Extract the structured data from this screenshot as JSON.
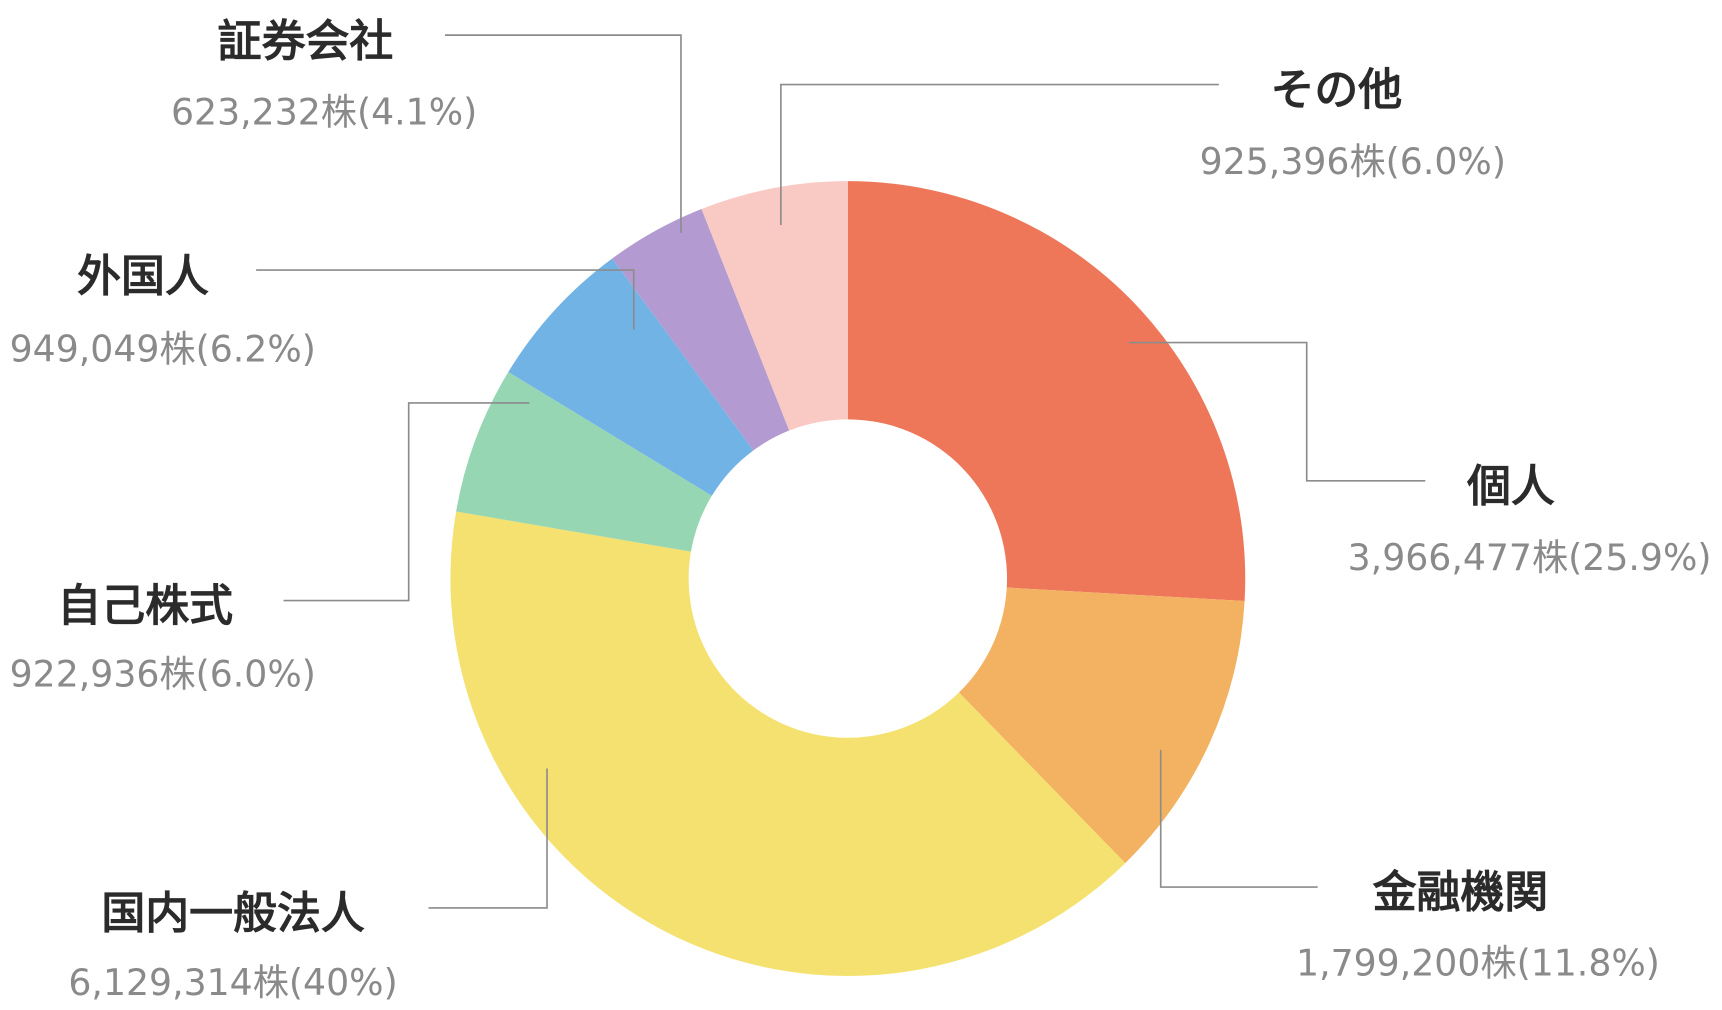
{
  "chart_data": {
    "type": "pie",
    "variant": "donut",
    "unit": "株",
    "start": "top",
    "direction": "clockwise",
    "slices": [
      {
        "label": "個人",
        "value": 3966477,
        "value_text": "3,966,477株(25.9%)",
        "percent": 25.9,
        "color": "#EE775A"
      },
      {
        "label": "金融機関",
        "value": 1799200,
        "value_text": "1,799,200株(11.8%)",
        "percent": 11.8,
        "color": "#F3B261"
      },
      {
        "label": "国内一般法人",
        "value": 6129314,
        "value_text": "6,129,314株(40%)",
        "percent": 40.0,
        "color": "#F5E170"
      },
      {
        "label": "自己株式",
        "value": 922936,
        "value_text": "922,936株(6.0%)",
        "percent": 6.0,
        "color": "#97D6B2"
      },
      {
        "label": "外国人",
        "value": 949049,
        "value_text": "949,049株(6.2%)",
        "percent": 6.2,
        "color": "#72B3E6"
      },
      {
        "label": "証券会社",
        "value": 623232,
        "value_text": "623,232株(4.1%)",
        "percent": 4.1,
        "color": "#B39AD0"
      },
      {
        "label": "その他",
        "value": 925396,
        "value_text": "925,396株(6.0%)",
        "percent": 6.0,
        "color": "#F9C9C4"
      }
    ]
  }
}
